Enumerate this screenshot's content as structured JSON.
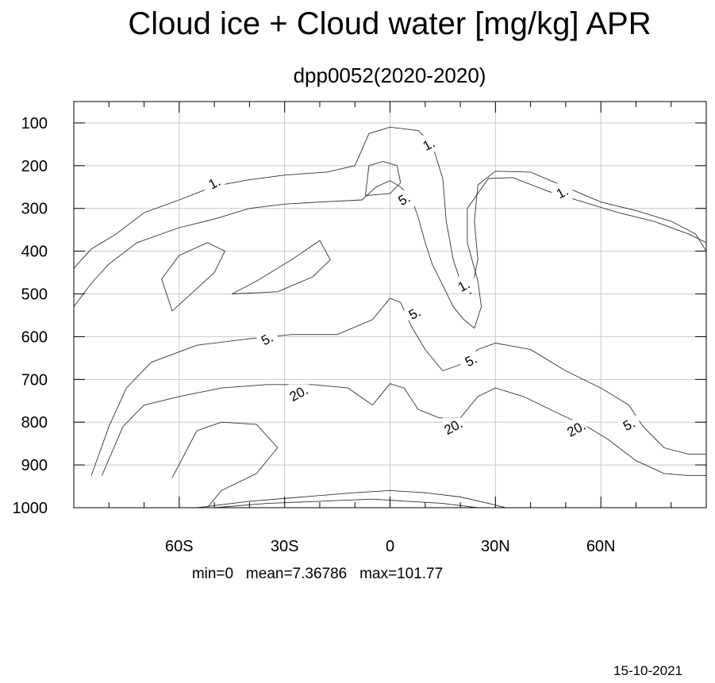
{
  "chart_data": {
    "type": "contour",
    "title": "Cloud ice + Cloud water [mg/kg] APR",
    "subtitle": "dpp0052(2020-2020)",
    "xlabel": "",
    "ylabel": "",
    "xlim": [
      -90,
      90
    ],
    "ylim": [
      1000,
      50
    ],
    "x_ticks": [
      {
        "value": -60,
        "label": "60S"
      },
      {
        "value": -30,
        "label": "30S"
      },
      {
        "value": 0,
        "label": "0"
      },
      {
        "value": 30,
        "label": "30N"
      },
      {
        "value": 60,
        "label": "60N"
      }
    ],
    "y_ticks": [
      {
        "value": 100,
        "label": "100"
      },
      {
        "value": 200,
        "label": "200"
      },
      {
        "value": 300,
        "label": "300"
      },
      {
        "value": 400,
        "label": "400"
      },
      {
        "value": 500,
        "label": "500"
      },
      {
        "value": 600,
        "label": "600"
      },
      {
        "value": 700,
        "label": "700"
      },
      {
        "value": 800,
        "label": "800"
      },
      {
        "value": 900,
        "label": "900"
      },
      {
        "value": 1000,
        "label": "1000"
      }
    ],
    "grid": true,
    "contour_lines": [
      {
        "level": "1.",
        "points": [
          [
            -90,
            440
          ],
          [
            -85,
            395
          ],
          [
            -78,
            360
          ],
          [
            -70,
            310
          ],
          [
            -60,
            280
          ],
          [
            -50,
            248
          ],
          [
            -40,
            233
          ],
          [
            -30,
            222
          ],
          [
            -18,
            215
          ],
          [
            -10,
            200
          ],
          [
            -6,
            125
          ],
          [
            0,
            110
          ],
          [
            8,
            118
          ],
          [
            12,
            150
          ],
          [
            15,
            230
          ],
          [
            16,
            330
          ],
          [
            18,
            420
          ],
          [
            20,
            470
          ],
          [
            23,
            500
          ],
          [
            25,
            420
          ],
          [
            24,
            330
          ],
          [
            25,
            245
          ],
          [
            30,
            213
          ],
          [
            40,
            215
          ],
          [
            50,
            250
          ],
          [
            60,
            285
          ],
          [
            70,
            305
          ],
          [
            80,
            330
          ],
          [
            87,
            360
          ],
          [
            90,
            400
          ]
        ]
      },
      {
        "level": "1.",
        "points": [
          [
            -62,
            540
          ],
          [
            -65,
            465
          ],
          [
            -60,
            410
          ],
          [
            -52,
            380
          ],
          [
            -47,
            400
          ],
          [
            -50,
            450
          ],
          [
            -58,
            510
          ],
          [
            -62,
            540
          ]
        ]
      },
      {
        "level": "1.",
        "points": [
          [
            -45,
            500
          ],
          [
            -38,
            470
          ],
          [
            -28,
            420
          ],
          [
            -20,
            375
          ],
          [
            -17,
            420
          ],
          [
            -22,
            460
          ],
          [
            -32,
            495
          ],
          [
            -45,
            500
          ]
        ]
      },
      {
        "level": "5.",
        "points": [
          [
            -90,
            530
          ],
          [
            -85,
            475
          ],
          [
            -80,
            430
          ],
          [
            -72,
            380
          ],
          [
            -60,
            345
          ],
          [
            -50,
            325
          ],
          [
            -40,
            300
          ],
          [
            -30,
            290
          ],
          [
            -20,
            285
          ],
          [
            -8,
            280
          ],
          [
            -4,
            250
          ],
          [
            0,
            235
          ],
          [
            3,
            250
          ],
          [
            6,
            275
          ],
          [
            8,
            320
          ],
          [
            10,
            380
          ],
          [
            12,
            430
          ],
          [
            15,
            480
          ],
          [
            18,
            530
          ],
          [
            21,
            560
          ],
          [
            24,
            580
          ],
          [
            26,
            530
          ],
          [
            25,
            470
          ],
          [
            22,
            380
          ],
          [
            22,
            300
          ],
          [
            28,
            230
          ],
          [
            35,
            228
          ],
          [
            45,
            260
          ],
          [
            55,
            285
          ],
          [
            65,
            310
          ],
          [
            75,
            330
          ],
          [
            85,
            360
          ],
          [
            90,
            380
          ]
        ]
      },
      {
        "level": "5.",
        "points": [
          [
            -7,
            270
          ],
          [
            -6,
            200
          ],
          [
            -2,
            190
          ],
          [
            2,
            200
          ],
          [
            3,
            240
          ],
          [
            0,
            265
          ],
          [
            -7,
            270
          ]
        ]
      },
      {
        "level": "5.",
        "points": [
          [
            -85,
            925
          ],
          [
            -80,
            810
          ],
          [
            -75,
            720
          ],
          [
            -68,
            660
          ],
          [
            -55,
            620
          ],
          [
            -40,
            605
          ],
          [
            -28,
            595
          ],
          [
            -15,
            595
          ],
          [
            -5,
            560
          ],
          [
            0,
            510
          ],
          [
            3,
            520
          ],
          [
            6,
            575
          ],
          [
            10,
            630
          ],
          [
            15,
            680
          ],
          [
            20,
            665
          ],
          [
            25,
            630
          ],
          [
            30,
            615
          ],
          [
            40,
            630
          ],
          [
            50,
            680
          ],
          [
            60,
            720
          ],
          [
            68,
            760
          ],
          [
            72,
            810
          ],
          [
            78,
            860
          ],
          [
            85,
            875
          ],
          [
            90,
            875
          ]
        ]
      },
      {
        "level": "20.",
        "points": [
          [
            -82,
            925
          ],
          [
            -76,
            810
          ],
          [
            -70,
            760
          ],
          [
            -60,
            740
          ],
          [
            -48,
            720
          ],
          [
            -35,
            712
          ],
          [
            -22,
            712
          ],
          [
            -12,
            720
          ],
          [
            -5,
            760
          ],
          [
            0,
            710
          ],
          [
            4,
            720
          ],
          [
            8,
            770
          ],
          [
            14,
            790
          ],
          [
            20,
            790
          ],
          [
            25,
            740
          ],
          [
            30,
            720
          ],
          [
            38,
            740
          ],
          [
            48,
            780
          ],
          [
            56,
            810
          ],
          [
            62,
            840
          ],
          [
            70,
            890
          ],
          [
            78,
            920
          ],
          [
            85,
            925
          ],
          [
            90,
            925
          ]
        ]
      },
      {
        "level": "20.",
        "points": [
          [
            -62,
            930
          ],
          [
            -55,
            820
          ],
          [
            -48,
            800
          ],
          [
            -38,
            805
          ],
          [
            -32,
            860
          ],
          [
            -38,
            920
          ],
          [
            -48,
            960
          ],
          [
            -52,
            1000
          ]
        ]
      },
      {
        "level": "",
        "points": [
          [
            -55,
            1000
          ],
          [
            -40,
            985
          ],
          [
            -25,
            975
          ],
          [
            -10,
            965
          ],
          [
            0,
            960
          ],
          [
            10,
            965
          ],
          [
            20,
            975
          ],
          [
            28,
            990
          ],
          [
            33,
            1000
          ]
        ]
      },
      {
        "level": "",
        "points": [
          [
            -50,
            1000
          ],
          [
            -35,
            990
          ],
          [
            -20,
            985
          ],
          [
            -5,
            980
          ],
          [
            5,
            985
          ],
          [
            15,
            990
          ],
          [
            25,
            1000
          ]
        ]
      }
    ],
    "contour_labels": [
      {
        "text": "1.",
        "x": -50,
        "y": 240
      },
      {
        "text": "1.",
        "x": 11,
        "y": 150
      },
      {
        "text": "1.",
        "x": 49,
        "y": 262
      },
      {
        "text": "1.",
        "x": 21,
        "y": 480
      },
      {
        "text": "5.",
        "x": 4,
        "y": 278
      },
      {
        "text": "5.",
        "x": 7,
        "y": 545
      },
      {
        "text": "5.",
        "x": -35,
        "y": 605
      },
      {
        "text": "5.",
        "x": 23,
        "y": 655
      },
      {
        "text": "5.",
        "x": 68,
        "y": 805
      },
      {
        "text": "20.",
        "x": -26,
        "y": 732
      },
      {
        "text": "20.",
        "x": 18,
        "y": 810
      },
      {
        "text": "20.",
        "x": 53,
        "y": 815
      }
    ],
    "stats": "min=0   mean=7.36786   max=101.77",
    "date": "15-10-2021"
  }
}
